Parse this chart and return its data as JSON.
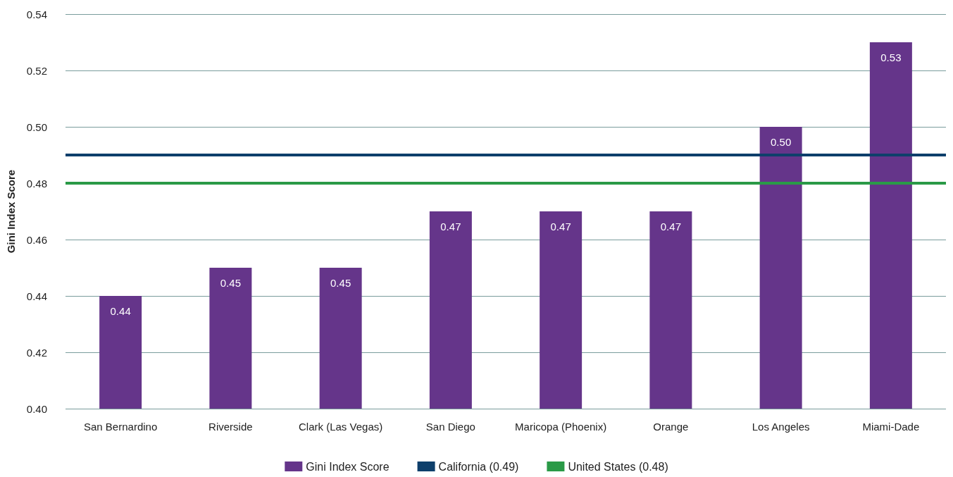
{
  "chart_data": {
    "type": "bar",
    "ylabel": "Gini Index Score",
    "categories": [
      "San Bernardino",
      "Riverside",
      "Clark (Las Vegas)",
      "San Diego",
      "Maricopa (Phoenix)",
      "Orange",
      "Los Angeles",
      "Miami-Dade"
    ],
    "series": [
      {
        "name": "Gini Index Score",
        "color": "#65358a",
        "values": [
          0.44,
          0.45,
          0.45,
          0.47,
          0.47,
          0.47,
          0.5,
          0.53
        ],
        "value_labels": [
          "0.44",
          "0.45",
          "0.45",
          "0.47",
          "0.47",
          "0.47",
          "0.50",
          "0.53"
        ]
      }
    ],
    "ylim": [
      0.4,
      0.54
    ],
    "yticks": [
      {
        "value": 0.4,
        "label": "0.40"
      },
      {
        "value": 0.42,
        "label": "0.42"
      },
      {
        "value": 0.44,
        "label": "0.44"
      },
      {
        "value": 0.46,
        "label": "0.46"
      },
      {
        "value": 0.48,
        "label": "0.48"
      },
      {
        "value": 0.5,
        "label": "0.50"
      },
      {
        "value": 0.52,
        "label": "0.52"
      },
      {
        "value": 0.54,
        "label": "0.54"
      }
    ],
    "ref_lines": [
      {
        "axis": "y",
        "value": 0.49,
        "label": "California (0.49)",
        "color": "#0d3f6b"
      },
      {
        "axis": "y",
        "value": 0.48,
        "label": "United States (0.48)",
        "color": "#2a9a47"
      }
    ],
    "grid": "y",
    "legend": "bottom"
  }
}
